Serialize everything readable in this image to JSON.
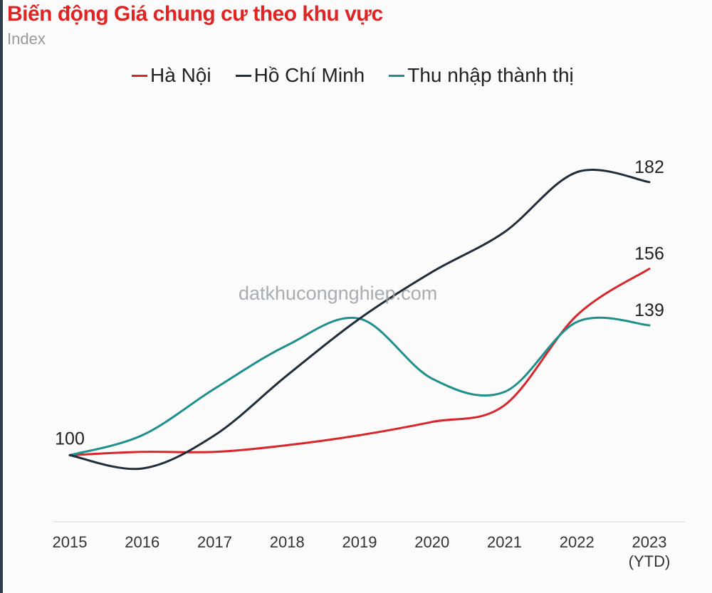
{
  "chart_data": {
    "type": "line",
    "title": "Biến động Giá chung cư theo khu vực",
    "subtitle": "Index",
    "categories": [
      "2015",
      "2016",
      "2017",
      "2018",
      "2019",
      "2020",
      "2021",
      "2022",
      "2023\n(YTD)"
    ],
    "series": [
      {
        "name": "Hà Nội",
        "color": "#d9262b",
        "values": [
          100,
          101,
          101,
          103,
          106,
          110,
          115,
          142,
          156
        ]
      },
      {
        "name": "Hồ Chí Minh",
        "color": "#1f2d3a",
        "values": [
          100,
          96,
          106,
          124,
          141,
          155,
          167,
          185,
          182
        ]
      },
      {
        "name": "Thu nhập thành thị",
        "color": "#1f8f8e",
        "values": [
          100,
          106,
          120,
          133,
          141,
          123,
          119,
          140,
          139
        ]
      }
    ],
    "data_labels": [
      {
        "text": "100",
        "series": "Hồ Chí Minh",
        "index": 0
      },
      {
        "text": "182",
        "series": "Hồ Chí Minh",
        "index": 8
      },
      {
        "text": "156",
        "series": "Hà Nội",
        "index": 8
      },
      {
        "text": "139",
        "series": "Thu nhập thành thị",
        "index": 8
      }
    ],
    "ylim": [
      80,
      195
    ],
    "xlabel": "",
    "ylabel": "",
    "grid": false,
    "legend_position": "top"
  },
  "colors": {
    "title": "#e02424"
  },
  "watermark": "datkhucongnghiep.com"
}
